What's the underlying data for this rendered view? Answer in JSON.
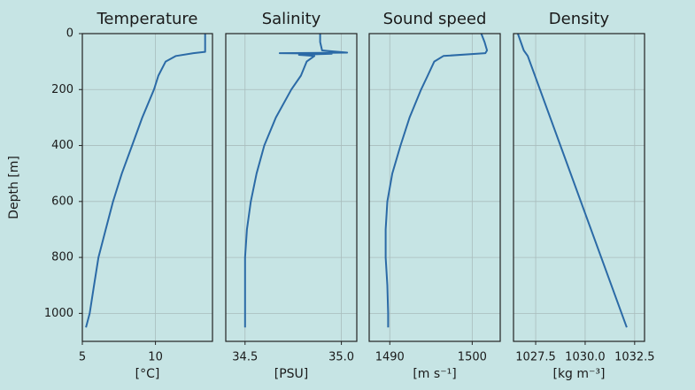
{
  "chart_data": [
    {
      "type": "line",
      "title": "Temperature",
      "xlabel": "[°C]",
      "ylabel": "Depth [m]",
      "color": "#2b6aa6",
      "grid": true,
      "xlim": [
        5,
        13.9
      ],
      "xticks": [
        5,
        10
      ],
      "ylim": [
        1100,
        0
      ],
      "yticks": [
        0,
        200,
        400,
        600,
        800,
        1000
      ],
      "y": [
        0,
        30,
        65,
        70,
        80,
        100,
        150,
        200,
        300,
        400,
        500,
        600,
        700,
        800,
        900,
        1000,
        1050
      ],
      "x": [
        13.4,
        13.4,
        13.4,
        12.6,
        11.4,
        10.7,
        10.2,
        9.9,
        9.1,
        8.4,
        7.7,
        7.1,
        6.6,
        6.1,
        5.8,
        5.5,
        5.25
      ]
    },
    {
      "type": "line",
      "title": "Salinity",
      "xlabel": "[PSU]",
      "color": "#2b6aa6",
      "grid": true,
      "xlim": [
        34.4,
        35.08
      ],
      "xticks": [
        34.5,
        {
          "value": 35,
          "label": "35.0"
        }
      ],
      "ylim": [
        1100,
        0
      ],
      "y": [
        0,
        30,
        60,
        68,
        70,
        72,
        76,
        80,
        100,
        150,
        200,
        300,
        400,
        500,
        600,
        700,
        800,
        900,
        1000,
        1050
      ],
      "x": [
        34.89,
        34.89,
        34.9,
        35.03,
        34.68,
        34.95,
        34.78,
        34.86,
        34.82,
        34.79,
        34.74,
        34.66,
        34.6,
        34.56,
        34.53,
        34.51,
        34.5,
        34.5,
        34.5,
        34.5
      ]
    },
    {
      "type": "line",
      "title": "Sound speed",
      "xlabel": "[m s⁻¹]",
      "color": "#2b6aa6",
      "grid": true,
      "xlim": [
        1487.5,
        1503.4
      ],
      "xticks": [
        1490,
        1500
      ],
      "ylim": [
        1100,
        0
      ],
      "y": [
        0,
        30,
        60,
        70,
        80,
        100,
        150,
        200,
        300,
        400,
        500,
        600,
        700,
        800,
        900,
        1000,
        1050
      ],
      "x": [
        1501.1,
        1501.5,
        1501.8,
        1501.6,
        1496.5,
        1495.4,
        1494.6,
        1493.8,
        1492.4,
        1491.3,
        1490.3,
        1489.7,
        1489.5,
        1489.5,
        1489.7,
        1489.8,
        1489.8
      ]
    },
    {
      "type": "line",
      "title": "Density",
      "xlabel": "[kg m⁻³]",
      "color": "#2b6aa6",
      "grid": true,
      "xlim": [
        1026.38,
        1033.0
      ],
      "xticks": [
        1027.5,
        {
          "value": 1030,
          "label": "1030.0"
        },
        1032.5
      ],
      "ylim": [
        1100,
        0
      ],
      "y": [
        0,
        60,
        80,
        1050
      ],
      "x": [
        1026.6,
        1026.9,
        1027.1,
        1032.1
      ]
    }
  ]
}
